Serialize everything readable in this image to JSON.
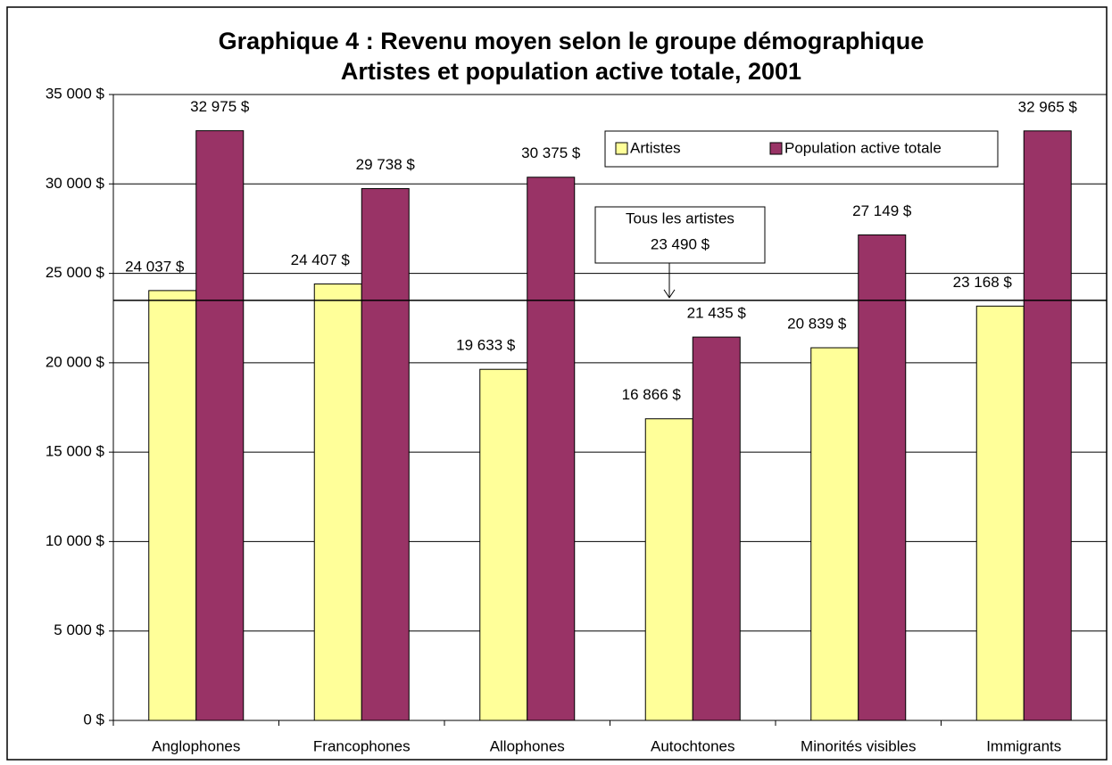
{
  "chart_data": {
    "type": "bar",
    "title": "Graphique 4 : Revenu moyen selon le groupe démographique",
    "subtitle": "Artistes et population active totale, 2001",
    "categories": [
      "Anglophones",
      "Francophones",
      "Allophones",
      "Autochtones",
      "Minorités visibles",
      "Immigrants"
    ],
    "series": [
      {
        "name": "Artistes",
        "color": "#ffff99",
        "values": [
          24037,
          24407,
          19633,
          16866,
          20839,
          23168
        ],
        "value_labels": [
          "24 037 $",
          "24 407 $",
          "19 633 $",
          "16 866 $",
          "20 839 $",
          "23 168 $"
        ]
      },
      {
        "name": "Population active totale",
        "color": "#993366",
        "values": [
          32975,
          29738,
          30375,
          21435,
          27149,
          32965
        ],
        "value_labels": [
          "32 975 $",
          "29 738 $",
          "30 375 $",
          "21 435 $",
          "27 149 $",
          "32 965 $"
        ]
      }
    ],
    "ylim": [
      0,
      35000
    ],
    "yticks": [
      {
        "value": 0,
        "label": "0 $"
      },
      {
        "value": 5000,
        "label": "5 000 $"
      },
      {
        "value": 10000,
        "label": "10 000 $"
      },
      {
        "value": 15000,
        "label": "15 000 $"
      },
      {
        "value": 20000,
        "label": "20 000 $"
      },
      {
        "value": 25000,
        "label": "25 000 $"
      },
      {
        "value": 30000,
        "label": "30 000 $"
      },
      {
        "value": 35000,
        "label": "35 000 $"
      }
    ],
    "grid": true,
    "legend": "top-right",
    "reference_line": {
      "label": "Tous les artistes",
      "value": 23490,
      "value_label": "23 490 $"
    }
  }
}
